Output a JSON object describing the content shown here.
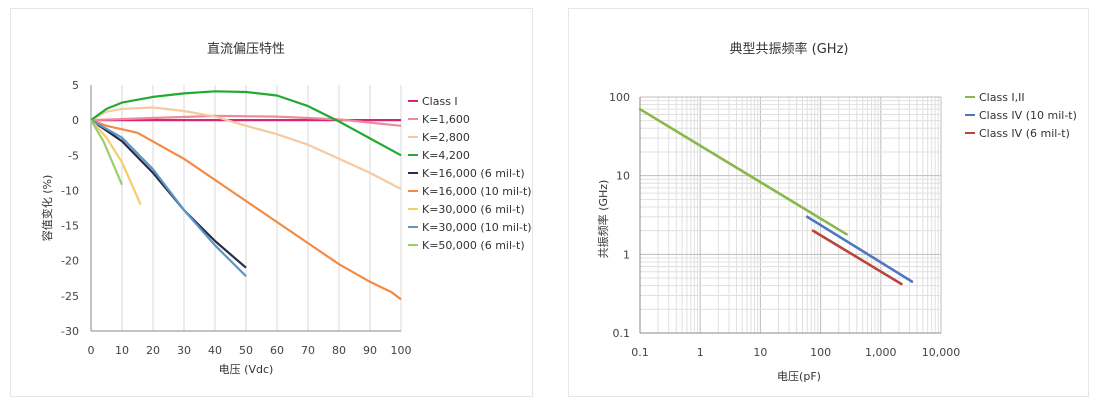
{
  "chart_data": [
    {
      "type": "line",
      "title": "直流偏压特性",
      "xlabel": "电压 (Vdc)",
      "ylabel": "容值变化 (%)",
      "xlim": [
        0,
        100
      ],
      "ylim": [
        -30,
        5
      ],
      "xticks": [
        "0",
        "10",
        "20",
        "30",
        "40",
        "50",
        "60",
        "70",
        "80",
        "90",
        "100"
      ],
      "yticks": [
        "5",
        "0",
        "-5",
        "-10",
        "-15",
        "-20",
        "-25",
        "-30"
      ],
      "grid": "vertical",
      "legend_position": "right",
      "series": [
        {
          "name": "Class I",
          "color": "#d6247a",
          "x": [
            0,
            20,
            40,
            60,
            80,
            100
          ],
          "y": [
            0,
            0,
            0,
            0,
            0,
            0
          ]
        },
        {
          "name": "K=1,600",
          "color": "#f08a9a",
          "x": [
            0,
            20,
            40,
            60,
            80,
            100
          ],
          "y": [
            0,
            0.3,
            0.6,
            0.5,
            0.1,
            -0.8
          ]
        },
        {
          "name": "K=2,800",
          "color": "#f6c9a0",
          "x": [
            0,
            5,
            10,
            20,
            30,
            40,
            50,
            60,
            70,
            80,
            90,
            100
          ],
          "y": [
            0,
            1.2,
            1.6,
            1.8,
            1.3,
            0.5,
            -0.8,
            -2,
            -3.5,
            -5.5,
            -7.5,
            -9.8
          ]
        },
        {
          "name": "K=4,200",
          "color": "#22aa33",
          "x": [
            0,
            5,
            10,
            20,
            30,
            40,
            50,
            60,
            70,
            80,
            90,
            100
          ],
          "y": [
            0,
            1.6,
            2.5,
            3.3,
            3.8,
            4.1,
            4.0,
            3.5,
            2.0,
            -0.2,
            -2.6,
            -5.0
          ]
        },
        {
          "name": "K=16,000 (6 mil-t)",
          "color": "#2c2a4a",
          "x": [
            0,
            10,
            20,
            30,
            40,
            50
          ],
          "y": [
            0,
            -3,
            -7.5,
            -12.8,
            -17.2,
            -21.0
          ]
        },
        {
          "name": "K=16,000 (10 mil-t)",
          "color": "#f48a44",
          "x": [
            0,
            5,
            15,
            30,
            50,
            70,
            80,
            90,
            97,
            100
          ],
          "y": [
            0,
            -0.8,
            -1.8,
            -5.5,
            -11.5,
            -17.5,
            -20.5,
            -23,
            -24.5,
            -25.5
          ]
        },
        {
          "name": "K=30,000 (6 mil-t)",
          "color": "#f6cd6a",
          "x": [
            0,
            5,
            10,
            16
          ],
          "y": [
            0,
            -2.5,
            -6,
            -12
          ]
        },
        {
          "name": "K=30,000 (10 mil-t)",
          "color": "#5a96c8",
          "x": [
            0,
            10,
            20,
            30,
            40,
            50
          ],
          "y": [
            0,
            -2.5,
            -7,
            -12.8,
            -17.8,
            -22.2
          ]
        },
        {
          "name": "K=50,000 (6 mil-t)",
          "color": "#9bcf6a",
          "x": [
            0,
            4,
            10
          ],
          "y": [
            0,
            -3,
            -9.2
          ]
        }
      ]
    },
    {
      "type": "line",
      "title": "典型共振频率 (GHz)",
      "xlabel": "电压(pF)",
      "ylabel": "共振频率 (GHz)",
      "xscale": "log",
      "yscale": "log",
      "xlim": [
        0.1,
        10000
      ],
      "ylim": [
        0.1,
        100
      ],
      "xticks": [
        "0.1",
        "1",
        "10",
        "100",
        "1,000",
        "10,000"
      ],
      "yticks": [
        "100",
        "10",
        "1",
        "0.1"
      ],
      "grid": "both",
      "legend_position": "right",
      "series": [
        {
          "name": "Class I,II",
          "color": "#8bb64a",
          "x": [
            0.1,
            270
          ],
          "y": [
            70,
            1.8
          ]
        },
        {
          "name": "Class IV (10 mil-t)",
          "color": "#4c77c0",
          "x": [
            60,
            3300
          ],
          "y": [
            3.0,
            0.45
          ]
        },
        {
          "name": "Class IV (6 mil-t)",
          "color": "#b8443c",
          "x": [
            75,
            2200
          ],
          "y": [
            2.0,
            0.42
          ]
        }
      ]
    }
  ]
}
